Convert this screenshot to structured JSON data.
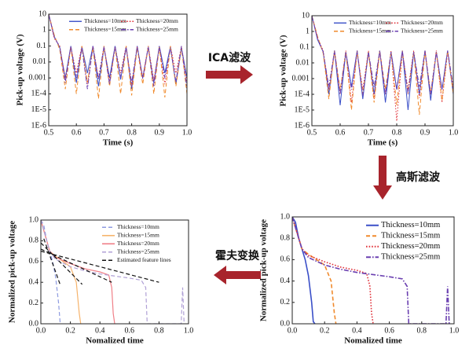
{
  "annotations": [
    "ICA滤波",
    "高斯滤波",
    "霍夫变换"
  ],
  "chart_data": [
    {
      "type": "line",
      "x_label": "Time (s)",
      "y_label": "Pick-up voltage (V)",
      "log_y": true,
      "legend": "upper center",
      "xlim": [
        0.5,
        1
      ],
      "xticks": [
        0.5,
        0.6,
        0.7,
        0.8,
        0.9,
        {
          "value": 1,
          "label": "1.0"
        }
      ],
      "ylim": [
        1e-06,
        10
      ],
      "yticks": [
        {
          "value": 1e-06,
          "label": "1E-6"
        },
        {
          "value": 1e-05,
          "label": "1E-5"
        },
        {
          "value": 0.0001,
          "label": "1E-4"
        },
        0.001,
        0.01,
        0.1,
        1,
        10
      ],
      "x": [
        0.5,
        0.52,
        0.54,
        0.56,
        0.58,
        0.6,
        0.62,
        0.64,
        0.66,
        0.68,
        0.7,
        0.72,
        0.74,
        0.76,
        0.78,
        0.8,
        0.82,
        0.84,
        0.86,
        0.88,
        0.9,
        0.92,
        0.94,
        0.96,
        0.98,
        1
      ],
      "series": [
        {
          "name": "Thickness=10mm",
          "color": "#3a4fc8",
          "line_style": "solid",
          "values": [
            10,
            0.4,
            0.08,
            0.001,
            0.1,
            0.0005,
            0.09,
            0.002,
            0.1,
            0.0003,
            0.08,
            0.001,
            0.1,
            0.0008,
            0.09,
            0.0002,
            0.1,
            0.001,
            0.08,
            0.0005,
            0.1,
            0.002,
            0.09,
            0.0004,
            0.08,
            0.001
          ]
        },
        {
          "name": "Thickness=20mm",
          "color": "#e0323a",
          "line_style": "dotted",
          "values": [
            10,
            0.3,
            0.1,
            0.0008,
            0.08,
            0.002,
            0.1,
            0.0004,
            0.09,
            0.001,
            0.1,
            0.0006,
            0.08,
            0.002,
            0.1,
            0.0003,
            0.09,
            0.001,
            0.1,
            0.0007,
            0.08,
            0.0004,
            0.1,
            0.002,
            0.09,
            0.0005
          ]
        },
        {
          "name": "Thickness=15mm",
          "color": "#f08a2c",
          "line_style": "dashed",
          "values": [
            10,
            0.5,
            0.06,
            0.0002,
            0.09,
            0.0001,
            0.1,
            0.0005,
            0.08,
            5e-05,
            0.1,
            0.0003,
            0.09,
            0.0001,
            0.1,
            8e-05,
            0.08,
            0.0004,
            0.1,
            0.0001,
            0.09,
            6e-05,
            0.1,
            0.0003,
            0.08,
            0.0001
          ]
        },
        {
          "name": "Thickness=25mm",
          "color": "#6a3fb0",
          "line_style": "dashdot",
          "values": [
            10,
            0.35,
            0.09,
            0.0005,
            0.1,
            0.001,
            0.08,
            0.0002,
            0.1,
            0.0008,
            0.09,
            0.0004,
            0.1,
            0.001,
            0.08,
            0.0005,
            0.1,
            0.0009,
            0.09,
            0.0003,
            0.1,
            0.001,
            0.08,
            0.0006,
            0.1,
            0.0002
          ]
        }
      ]
    },
    {
      "type": "line",
      "x_label": "Time (s)",
      "y_label": "Pick-up voltage (V)",
      "log_y": true,
      "legend": "upper center",
      "xlim": [
        0.5,
        1
      ],
      "xticks": [
        0.5,
        0.6,
        0.7,
        0.8,
        0.9,
        {
          "value": 1,
          "label": "1.0"
        }
      ],
      "ylim": [
        1e-06,
        10
      ],
      "yticks": [
        {
          "value": 1e-06,
          "label": "1E-6"
        },
        {
          "value": 1e-05,
          "label": "1E-5"
        },
        {
          "value": 0.0001,
          "label": "1E-4"
        },
        0.001,
        0.01,
        0.1,
        1,
        10
      ],
      "x": [
        0.5,
        0.52,
        0.54,
        0.56,
        0.58,
        0.6,
        0.62,
        0.64,
        0.66,
        0.68,
        0.7,
        0.72,
        0.74,
        0.76,
        0.78,
        0.8,
        0.82,
        0.84,
        0.86,
        0.88,
        0.9,
        0.92,
        0.94,
        0.96,
        0.98,
        1
      ],
      "series": [
        {
          "name": "Thickness=10mm",
          "color": "#3a4fc8",
          "line_style": "solid",
          "values": [
            10,
            0.3,
            0.05,
            0.0001,
            0.06,
            2e-05,
            0.05,
            0.0003,
            0.06,
            5e-05,
            0.05,
            0.0001,
            0.06,
            3e-05,
            0.05,
            0.0002,
            0.06,
            1e-05,
            0.05,
            0.0001,
            0.06,
            4e-05,
            0.05,
            0.0002,
            0.06,
            0.0001
          ]
        },
        {
          "name": "Thickness=20mm",
          "color": "#e0323a",
          "line_style": "dotted",
          "values": [
            10,
            0.4,
            0.06,
            0.0002,
            0.05,
            0.0001,
            0.06,
            3e-05,
            0.05,
            0.0002,
            0.06,
            5e-05,
            0.05,
            0.0001,
            0.06,
            2e-06,
            0.05,
            0.0002,
            0.06,
            6e-05,
            0.05,
            0.0001,
            0.06,
            3e-05,
            0.05,
            0.0002
          ]
        },
        {
          "name": "Thickness=15mm",
          "color": "#f08a2c",
          "line_style": "dashed",
          "values": [
            10,
            0.5,
            0.04,
            5e-05,
            0.06,
            0.0002,
            0.05,
            1e-05,
            0.06,
            0.0001,
            0.05,
            3e-05,
            0.06,
            0.0002,
            0.05,
            2e-05,
            0.06,
            0.0001,
            0.05,
            5e-06,
            0.06,
            0.0001,
            0.05,
            4e-05,
            0.06,
            0.0001
          ]
        },
        {
          "name": "Thickness=25mm",
          "color": "#6a3fb0",
          "line_style": "dashdot",
          "values": [
            10,
            0.35,
            0.05,
            0.0003,
            0.06,
            0.0001,
            0.05,
            0.0002,
            0.06,
            8e-05,
            0.05,
            0.0003,
            0.06,
            0.0001,
            0.05,
            0.0002,
            0.06,
            0.0001,
            0.05,
            0.0003,
            0.06,
            0.0001,
            0.05,
            0.0002,
            0.06,
            0.0003
          ]
        }
      ]
    },
    {
      "type": "line",
      "x_label": "Nomalized time",
      "y_label": "Normalized pick-up voltage",
      "legend": "upper right",
      "xlim": [
        0,
        1
      ],
      "xticks": [
        {
          "value": 0,
          "label": "0.0"
        },
        0.2,
        0.4,
        0.6,
        0.8,
        {
          "value": 1,
          "label": "1.0"
        }
      ],
      "ylim": [
        0,
        1
      ],
      "yticks": [
        {
          "value": 0,
          "label": "0.0"
        },
        0.2,
        0.4,
        0.6,
        0.8,
        {
          "value": 1,
          "label": "1.0"
        }
      ],
      "series": [
        {
          "name": "Thickness=10mm",
          "color": "#8e9be0",
          "line_style": "dashed",
          "x": [
            0,
            0.02,
            0.04,
            0.06,
            0.08,
            0.1,
            0.12,
            0.13,
            0.14
          ],
          "values": [
            1,
            0.95,
            0.8,
            0.7,
            0.6,
            0.45,
            0.2,
            0.02,
            0
          ]
        },
        {
          "name": "Thickness=15mm",
          "color": "#f6b36b",
          "line_style": "solid",
          "x": [
            0,
            0.03,
            0.06,
            0.1,
            0.15,
            0.2,
            0.24,
            0.26,
            0.27
          ],
          "values": [
            1,
            0.85,
            0.7,
            0.65,
            0.6,
            0.55,
            0.4,
            0.1,
            0
          ]
        },
        {
          "name": "Thickness=20mm",
          "color": "#f07f87",
          "line_style": "solid",
          "x": [
            0,
            0.03,
            0.06,
            0.1,
            0.2,
            0.3,
            0.4,
            0.46,
            0.48,
            0.49,
            0.5
          ],
          "values": [
            1,
            0.85,
            0.7,
            0.64,
            0.58,
            0.53,
            0.5,
            0.47,
            0.35,
            0.1,
            0
          ]
        },
        {
          "name": "Thickness=25mm",
          "color": "#b0a0d6",
          "line_style": "dashed",
          "x": [
            0,
            0.03,
            0.06,
            0.1,
            0.2,
            0.3,
            0.4,
            0.5,
            0.6,
            0.68,
            0.71,
            0.72,
            0.95,
            0.96,
            0.97
          ],
          "values": [
            1,
            0.85,
            0.7,
            0.62,
            0.55,
            0.51,
            0.48,
            0.46,
            0.44,
            0.42,
            0.35,
            0,
            0,
            0.35,
            0
          ]
        },
        {
          "name": "Estimated feature lines",
          "color": "#111111",
          "line_style": "dashed",
          "x": [
            0.02,
            0.13,
            null,
            0,
            0.28,
            null,
            0,
            0.48,
            null,
            0,
            0.8
          ],
          "values": [
            0.82,
            0.38,
            null,
            0.78,
            0.38,
            null,
            0.72,
            0.4,
            null,
            0.7,
            0.4
          ]
        }
      ]
    },
    {
      "type": "line",
      "x_label": "Nomalized time",
      "y_label": "Normalized pick-up voltage",
      "legend": "upper right",
      "xlim": [
        0,
        1
      ],
      "xticks": [
        {
          "value": 0,
          "label": "0.0"
        },
        0.2,
        0.4,
        0.6,
        0.8,
        {
          "value": 1,
          "label": "1.0"
        }
      ],
      "ylim": [
        0,
        1
      ],
      "yticks": [
        {
          "value": 0,
          "label": "0.0"
        },
        0.2,
        0.4,
        0.6,
        0.8,
        {
          "value": 1,
          "label": "1.0"
        }
      ],
      "series": [
        {
          "name": "Thickness=10mm",
          "color": "#3a4fc8",
          "line_style": "solid",
          "x": [
            0,
            0.02,
            0.04,
            0.06,
            0.08,
            0.1,
            0.12,
            0.13,
            0.14
          ],
          "values": [
            1,
            0.95,
            0.8,
            0.7,
            0.6,
            0.45,
            0.2,
            0.02,
            0
          ]
        },
        {
          "name": "Thickness=15mm",
          "color": "#f08a2c",
          "line_style": "dashed",
          "x": [
            0,
            0.03,
            0.06,
            0.1,
            0.15,
            0.2,
            0.24,
            0.26,
            0.27
          ],
          "values": [
            1,
            0.85,
            0.7,
            0.65,
            0.6,
            0.55,
            0.4,
            0.1,
            0
          ]
        },
        {
          "name": "Thickness=20mm",
          "color": "#e0323a",
          "line_style": "dotted",
          "x": [
            0,
            0.03,
            0.06,
            0.1,
            0.2,
            0.3,
            0.4,
            0.46,
            0.48,
            0.49,
            0.5
          ],
          "values": [
            1,
            0.85,
            0.7,
            0.64,
            0.58,
            0.53,
            0.5,
            0.47,
            0.35,
            0.1,
            0
          ]
        },
        {
          "name": "Thickness=25mm",
          "color": "#6a3fb0",
          "line_style": "dashdot",
          "x": [
            0,
            0.03,
            0.06,
            0.1,
            0.2,
            0.3,
            0.4,
            0.5,
            0.6,
            0.68,
            0.71,
            0.72,
            0.95,
            0.96,
            0.97
          ],
          "values": [
            1,
            0.85,
            0.7,
            0.62,
            0.55,
            0.51,
            0.48,
            0.46,
            0.44,
            0.42,
            0.35,
            0,
            0,
            0.35,
            0
          ]
        }
      ]
    }
  ]
}
